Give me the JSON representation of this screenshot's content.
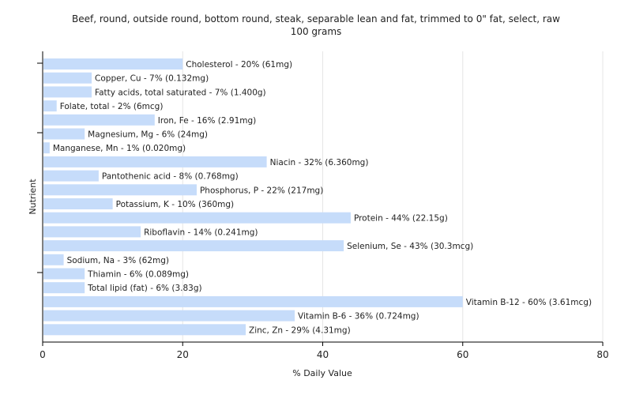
{
  "chart_data": {
    "type": "bar",
    "orientation": "horizontal",
    "title": "Beef, round, outside round, bottom round, steak, separable lean and fat, trimmed to 0\" fat, select, raw",
    "subtitle": "100 grams",
    "xlabel": "% Daily Value",
    "ylabel": "Nutrient",
    "xlim": [
      0,
      80
    ],
    "xticks": [
      "0",
      "20",
      "40",
      "60",
      "80"
    ],
    "grid": true,
    "bar_color": "#c6dcfa",
    "categories": [
      "Cholesterol",
      "Copper, Cu",
      "Fatty acids, total saturated",
      "Folate, total",
      "Iron, Fe",
      "Magnesium, Mg",
      "Manganese, Mn",
      "Niacin",
      "Pantothenic acid",
      "Phosphorus, P",
      "Potassium, K",
      "Protein",
      "Riboflavin",
      "Selenium, Se",
      "Sodium, Na",
      "Thiamin",
      "Total lipid (fat)",
      "Vitamin B-12",
      "Vitamin B-6",
      "Zinc, Zn"
    ],
    "values": [
      20,
      7,
      7,
      2,
      16,
      6,
      1,
      32,
      8,
      22,
      10,
      44,
      14,
      43,
      3,
      6,
      6,
      60,
      36,
      29
    ],
    "labels": [
      "Cholesterol - 20% (61mg)",
      "Copper, Cu - 7% (0.132mg)",
      "Fatty acids, total saturated - 7% (1.400g)",
      "Folate, total - 2% (6mcg)",
      "Iron, Fe - 16% (2.91mg)",
      "Magnesium, Mg - 6% (24mg)",
      "Manganese, Mn - 1% (0.020mg)",
      "Niacin - 32% (6.360mg)",
      "Pantothenic acid - 8% (0.768mg)",
      "Phosphorus, P - 22% (217mg)",
      "Potassium, K - 10% (360mg)",
      "Protein - 44% (22.15g)",
      "Riboflavin - 14% (0.241mg)",
      "Selenium, Se - 43% (30.3mcg)",
      "Sodium, Na - 3% (62mg)",
      "Thiamin - 6% (0.089mg)",
      "Total lipid (fat) - 6% (3.83g)",
      "Vitamin B-12 - 60% (3.61mcg)",
      "Vitamin B-6 - 36% (0.724mg)",
      "Zinc, Zn - 29% (4.31mg)"
    ]
  }
}
